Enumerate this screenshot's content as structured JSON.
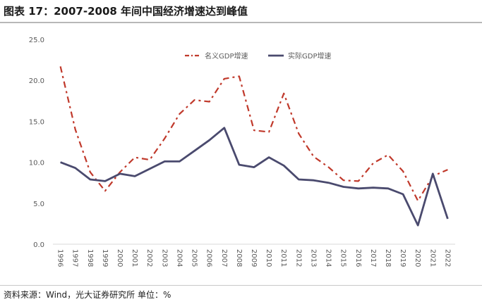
{
  "header": {
    "title": "图表 17：2007-2008 年间中国经济增速达到峰值"
  },
  "footer": {
    "source": "资料来源：Wind，光大证券研究所  单位：%"
  },
  "colors": {
    "nominal": "#c0392b",
    "real": "#4a4a6e",
    "axis": "#d9d9d9",
    "tick_text": "#595959"
  },
  "chart_data": {
    "type": "line",
    "x": [
      "1996",
      "1997",
      "1998",
      "1999",
      "2000",
      "2001",
      "2002",
      "2003",
      "2004",
      "2005",
      "2006",
      "2007",
      "2008",
      "2009",
      "2010",
      "2011",
      "2012",
      "2013",
      "2014",
      "2015",
      "2016",
      "2017",
      "2018",
      "2019",
      "2020",
      "2021",
      "2022"
    ],
    "ylim": [
      0,
      25
    ],
    "yticks": [
      "0.0",
      "5.0",
      "10.0",
      "15.0",
      "20.0",
      "25.0"
    ],
    "legend": "top",
    "series": [
      {
        "name": "名义GDP增速",
        "style": "dash-dot",
        "color": "#c0392b",
        "values": [
          21.7,
          14.0,
          8.8,
          6.5,
          8.8,
          10.6,
          10.3,
          12.9,
          15.9,
          17.6,
          17.4,
          20.2,
          20.5,
          13.9,
          13.7,
          18.4,
          13.5,
          10.7,
          9.4,
          7.8,
          7.7,
          9.9,
          10.9,
          8.9,
          5.3,
          8.3,
          9.1
        ]
      },
      {
        "name": "实际GDP增速",
        "style": "solid",
        "color": "#4a4a6e",
        "values": [
          10.0,
          9.3,
          7.9,
          7.7,
          8.6,
          8.3,
          9.2,
          10.1,
          10.1,
          11.4,
          12.7,
          14.2,
          9.7,
          9.4,
          10.6,
          9.6,
          7.9,
          7.8,
          7.5,
          7.0,
          6.8,
          6.9,
          6.8,
          6.1,
          2.3,
          8.6,
          3.1
        ]
      }
    ]
  }
}
